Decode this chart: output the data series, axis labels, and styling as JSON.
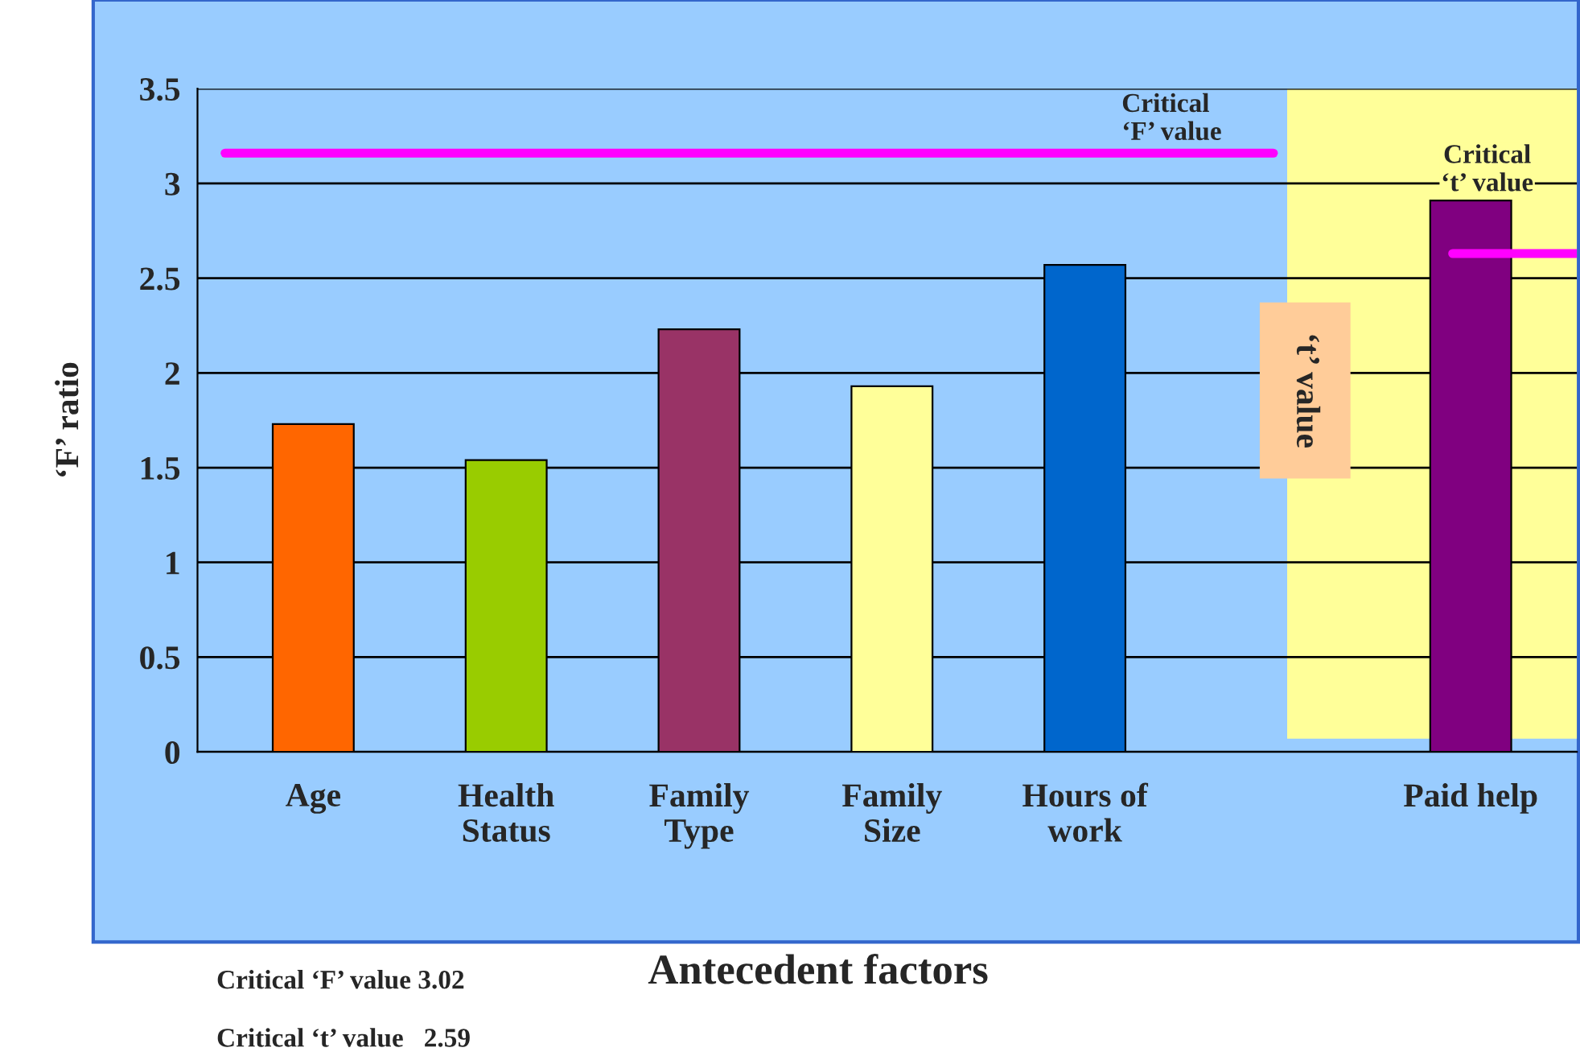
{
  "chart_data": {
    "type": "bar",
    "categories": [
      "Age",
      "Health\nStatus",
      "Family\nType",
      "Family\nSize",
      "Hours of\nwork",
      null,
      "Paid help"
    ],
    "values": [
      1.73,
      1.54,
      2.23,
      1.93,
      2.57,
      null,
      2.91
    ],
    "colors": [
      "#ff6600",
      "#99cc00",
      "#993366",
      "#ffff99",
      "#0066cc",
      "#ffffff",
      "#800080"
    ],
    "xlabel": "Antecedent factors",
    "ylabel": "‘F’ ratio",
    "ylim": [
      0,
      3.5
    ],
    "yticks": [
      0,
      0.5,
      1,
      1.5,
      2,
      2.5,
      3,
      3.5
    ],
    "grid": "y",
    "ref_lines": [
      {
        "axis": "y",
        "value": 3.16,
        "label": "Critical\n‘F’ value",
        "color": "#ff00ff"
      },
      {
        "axis": "y",
        "value": 2.63,
        "label": "Critical\n‘t’ value",
        "color": "#ff00ff"
      }
    ],
    "annotations": [
      "‘t’ value",
      "Critical ‘F’ value 3.02",
      "Critical ‘t’ value   2.59"
    ]
  }
}
